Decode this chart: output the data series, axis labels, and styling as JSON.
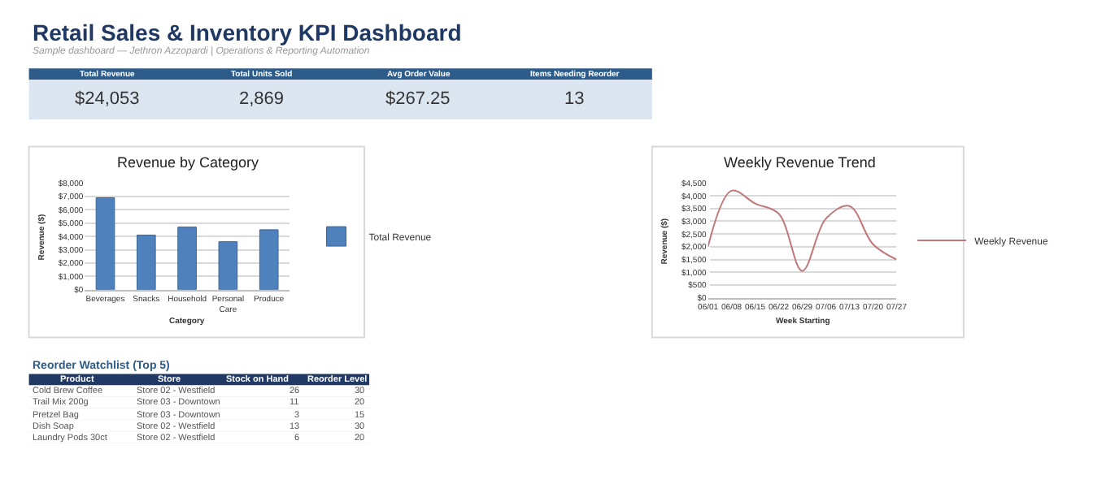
{
  "chart_data": [
    {
      "type": "other",
      "title": "Retail Sales & Inventory KPI Dashboard",
      "subtitle": "Sample dashboard — Jethron Azzopardi | Operations & Reporting Automation",
      "categories": [
        "Total Revenue",
        "Total Units Sold",
        "Avg Order Value",
        "Items Needing Reorder"
      ],
      "cell_labels": [
        [
          "$24,053",
          "2,869",
          "$267.25",
          "13"
        ]
      ]
    },
    {
      "type": "bar",
      "title": "Revenue by Category",
      "xlabel": "Category",
      "ylabel": "Revenue ($)",
      "categories": [
        "Beverages",
        "Snacks",
        "Household",
        "Personal Care",
        "Produce"
      ],
      "series": [
        {
          "name": "Total Revenue",
          "color": "#4f81bd",
          "values": [
            6900,
            4100,
            4700,
            3600,
            4500
          ]
        }
      ],
      "ylim": [
        0,
        8000
      ],
      "yticks": [
        {
          "value": 0,
          "label": "$0"
        },
        {
          "value": 1000,
          "label": "$1,000"
        },
        {
          "value": 2000,
          "label": "$2,000"
        },
        {
          "value": 3000,
          "label": "$3,000"
        },
        {
          "value": 4000,
          "label": "$4,000"
        },
        {
          "value": 5000,
          "label": "$5,000"
        },
        {
          "value": 6000,
          "label": "$6,000"
        },
        {
          "value": 7000,
          "label": "$7,000"
        },
        {
          "value": 8000,
          "label": "$8,000"
        }
      ],
      "grid": "y",
      "legend": "right"
    },
    {
      "type": "line",
      "title": "Weekly Revenue Trend",
      "xlabel": "Week Starting",
      "ylabel": "Revenue ($)",
      "categories": [
        "06/01",
        "06/08",
        "06/15",
        "06/22",
        "06/29",
        "07/06",
        "07/13",
        "07/20",
        "07/27"
      ],
      "series": [
        {
          "name": "Weekly Revenue",
          "color": "#c0787a",
          "values": [
            2000,
            4200,
            3700,
            3300,
            1050,
            3100,
            3600,
            2100,
            1500
          ]
        }
      ],
      "ylim": [
        0,
        4500
      ],
      "yticks": [
        {
          "value": 0,
          "label": "$0"
        },
        {
          "value": 500,
          "label": "$500"
        },
        {
          "value": 1000,
          "label": "$1,000"
        },
        {
          "value": 1500,
          "label": "$1,500"
        },
        {
          "value": 2000,
          "label": "$2,000"
        },
        {
          "value": 2500,
          "label": "$2,500"
        },
        {
          "value": 3000,
          "label": "$3,000"
        },
        {
          "value": 3500,
          "label": "$3,500"
        },
        {
          "value": 4000,
          "label": "$4,000"
        },
        {
          "value": 4500,
          "label": "$4,500"
        }
      ],
      "grid": "y",
      "legend": "right",
      "marker": "none",
      "line_style": "solid"
    },
    {
      "type": "other",
      "title": "Reorder Watchlist (Top 5)",
      "categories": [
        "Product",
        "Store",
        "Stock on Hand",
        "Reorder Level"
      ],
      "cell_labels": [
        [
          "Cold Brew Coffee",
          "Store 02 - Westfield",
          "26",
          "30"
        ],
        [
          "Trail Mix 200g",
          "Store 03 - Downtown",
          "11",
          "20"
        ],
        [
          "Pretzel Bag",
          "Store 03 - Downtown",
          "3",
          "15"
        ],
        [
          "Dish Soap",
          "Store 02 - Westfield",
          "13",
          "30"
        ],
        [
          "Laundry Pods 30ct",
          "Store 02 - Westfield",
          "6",
          "20"
        ]
      ]
    }
  ]
}
